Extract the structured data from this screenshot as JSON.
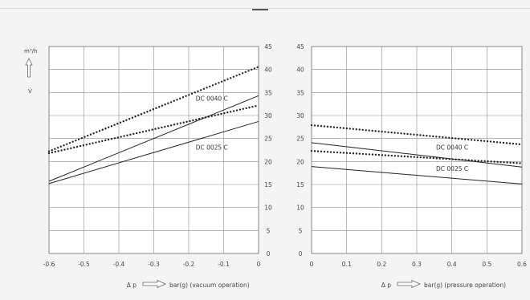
{
  "y_unit": "m³/h",
  "y_symbol": "V̇",
  "chart_data": [
    {
      "type": "line",
      "xlabel": "bar(g) (vacuum operation)",
      "xlabel_prefix": "Δ p",
      "xlim": [
        -0.6,
        0
      ],
      "ylim": [
        0,
        45
      ],
      "xticks": [
        "-0.6",
        "-0.5",
        "-0.4",
        "-0.3",
        "-0.2",
        "-0.1",
        "0"
      ],
      "yticks": [
        "0",
        "5",
        "10",
        "15",
        "20",
        "25",
        "30",
        "35",
        "40",
        "45"
      ],
      "grid": true,
      "series": [
        {
          "name": "DC 0040 C",
          "style": "solid",
          "x": [
            -0.6,
            0
          ],
          "y": [
            15.7,
            34.3
          ]
        },
        {
          "name": "DC 0040 C",
          "style": "dotted",
          "x": [
            -0.6,
            0
          ],
          "y": [
            22.2,
            40.6
          ]
        },
        {
          "name": "DC 0025 C",
          "style": "solid",
          "x": [
            -0.6,
            0
          ],
          "y": [
            15.2,
            28.7
          ]
        },
        {
          "name": "DC 0025 C",
          "style": "dotted",
          "x": [
            -0.6,
            0
          ],
          "y": [
            21.8,
            32.2
          ]
        }
      ],
      "annotations": [
        {
          "text": "DC 0040 C",
          "x": -0.18,
          "y": 33.2
        },
        {
          "text": "DC 0025 C",
          "x": -0.18,
          "y": 22.6
        }
      ]
    },
    {
      "type": "line",
      "xlabel": "bar(g) (pressure operation)",
      "xlabel_prefix": "Δ p",
      "xlim": [
        0,
        0.6
      ],
      "ylim": [
        0,
        45
      ],
      "xticks": [
        "0",
        "0.1",
        "0.2",
        "0.3",
        "0.4",
        "0.5",
        "0.6"
      ],
      "yticks": [
        "0",
        "5",
        "10",
        "15",
        "20",
        "25",
        "30",
        "35",
        "40",
        "45"
      ],
      "grid": true,
      "series": [
        {
          "name": "DC 0040 C",
          "style": "solid",
          "x": [
            0,
            0.6
          ],
          "y": [
            24.1,
            18.8
          ]
        },
        {
          "name": "DC 0040 C",
          "style": "dotted",
          "x": [
            0,
            0.6
          ],
          "y": [
            27.9,
            23.7
          ]
        },
        {
          "name": "DC 0025 C",
          "style": "solid",
          "x": [
            0,
            0.6
          ],
          "y": [
            18.9,
            15.1
          ]
        },
        {
          "name": "DC 0025 C",
          "style": "dotted",
          "x": [
            0,
            0.6
          ],
          "y": [
            22.3,
            19.6
          ]
        }
      ],
      "annotations": [
        {
          "text": "DC 0040 C",
          "x": 0.355,
          "y": 22.6
        },
        {
          "text": "DC 0025 C",
          "x": 0.355,
          "y": 18.0
        }
      ]
    }
  ]
}
